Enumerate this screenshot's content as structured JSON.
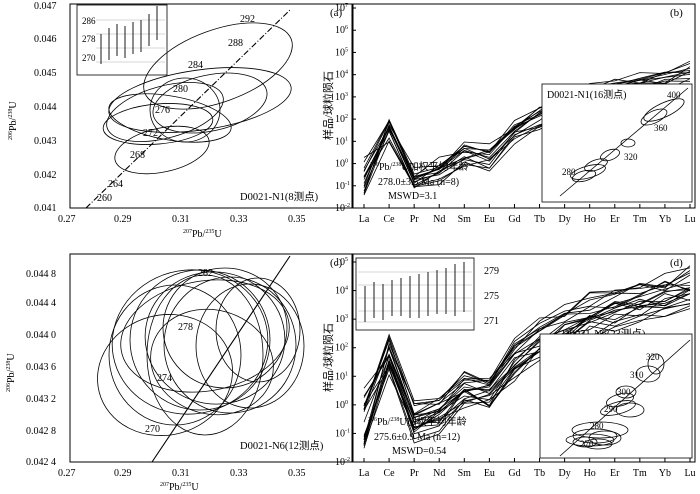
{
  "panel_a": {
    "label": "(a)",
    "xlabel_sup": "207",
    "xlabel_main": "Pb/",
    "xlabel_sup2": "235",
    "xlabel_end": "U",
    "ylabel_sup": "206",
    "ylabel_main": "Pb/",
    "ylabel_sup2": "238",
    "ylabel_end": "U",
    "x_ticks": [
      "0.27",
      "0.29",
      "0.31",
      "0.33",
      "0.35"
    ],
    "y_ticks": [
      "0.047",
      "0.046",
      "0.045",
      "0.044",
      "0.043",
      "0.042",
      "0.041"
    ],
    "concordia_labels": [
      "260",
      "264",
      "268",
      "272",
      "276",
      "280",
      "284",
      "288",
      "292"
    ],
    "sample_label": "D0021-N1(8测点)",
    "inset_ticks": [
      "286",
      "278",
      "270"
    ]
  },
  "panel_b": {
    "label": "(b)",
    "ylabel": "样品/球粒陨石",
    "y_ticks_exp": [
      "7",
      "6",
      "5",
      "4",
      "3",
      "2",
      "1",
      "0",
      "-1",
      "-2"
    ],
    "x_ticks": [
      "La",
      "Ce",
      "Pr",
      "Nd",
      "Sm",
      "Eu",
      "Gd",
      "Tb",
      "Dy",
      "Ho",
      "Er",
      "Tm",
      "Yb",
      "Lu"
    ],
    "age_line1": "Pb/",
    "age_line1_sup1": "206",
    "age_line1_sup2": "238",
    "age_line1_end": "U加权平均年龄",
    "age_line2": "278.0±3.5 Ma (n=8)",
    "age_line3": "MSWD=3.1",
    "inset_title": "D0021-N1(16测点)",
    "inset_labels": [
      "400",
      "360",
      "320",
      "280"
    ]
  },
  "panel_c": {
    "label": "(c)",
    "xlabel": "Pb/",
    "xlabel_sup1": "207",
    "xlabel_sup2": "235",
    "xlabel_end": "U",
    "ylabel_sup1": "206",
    "ylabel_sup2": "238",
    "x_ticks": [
      "0.27",
      "0.29",
      "0.31",
      "0.33",
      "0.35"
    ],
    "y_ticks": [
      "0.044 8",
      "0.044 4",
      "0.044 0",
      "0.043 6",
      "0.043 2",
      "0.042 8",
      "0.042 4"
    ],
    "concordia_labels": [
      "270",
      "274",
      "278",
      "282"
    ],
    "sample_label": "D0021-N6(12测点)"
  },
  "panel_d": {
    "label": "(d)",
    "ylabel": "样品/球粒陨石",
    "y_ticks_exp": [
      "5",
      "4",
      "3",
      "2",
      "1",
      "0",
      "-1",
      "-2"
    ],
    "x_ticks": [
      "La",
      "Ce",
      "Pr",
      "Nd",
      "Sm",
      "Eu",
      "Gd",
      "Tb",
      "Dy",
      "Ho",
      "Er",
      "Tm",
      "Yb",
      "Lu"
    ],
    "sample_label": "D0021-N6(23测点)",
    "inset_ticks": [
      "279",
      "275",
      "271"
    ],
    "age_line1_sup1": "206",
    "age_line1": "Pb/",
    "age_line1_sup2": "238",
    "age_line1_end": "U加权平均年龄",
    "age_line2": "275.6±0.9 Ma (n=12)",
    "age_line3": "MSWD=0.54",
    "inset_labels": [
      "320",
      "310",
      "300",
      "290",
      "280",
      "270"
    ]
  }
}
